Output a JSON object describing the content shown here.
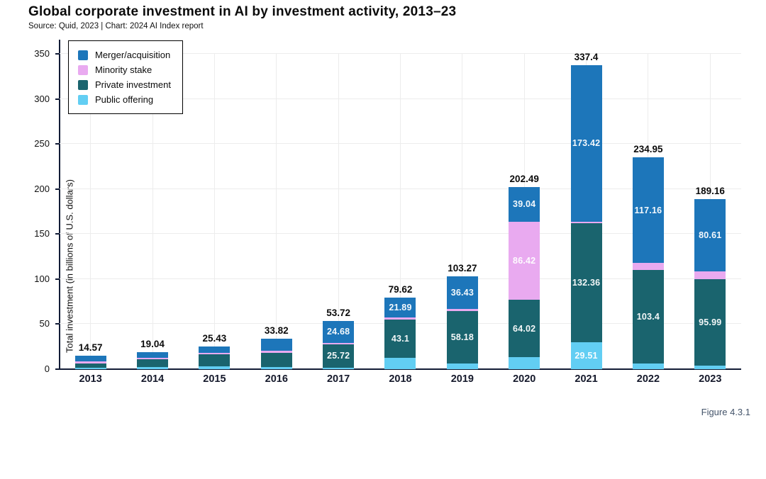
{
  "page": {
    "title": "Global corporate investment in AI by investment activity, 2013–23",
    "subtitle": "Source: Quid, 2023 | Chart: 2024 AI Index report",
    "figure_label": "Figure 4.3.1"
  },
  "chart_data": {
    "type": "bar",
    "variant": "stacked",
    "title": "Global corporate investment in AI by investment activity, 2013–23",
    "source": "Source: Quid, 2023 | Chart: 2024 AI Index report",
    "xlabel": "",
    "ylabel": "Total investment (in billions of U.S. dollars)",
    "ylim": [
      0,
      350
    ],
    "yticks": [
      0,
      50,
      100,
      150,
      200,
      250,
      300,
      350
    ],
    "grid": true,
    "legend_position": "top-left",
    "categories": [
      "2013",
      "2014",
      "2015",
      "2016",
      "2017",
      "2018",
      "2019",
      "2020",
      "2021",
      "2022",
      "2023"
    ],
    "totals": [
      14.57,
      19.04,
      25.43,
      33.82,
      53.72,
      79.62,
      103.27,
      202.49,
      337.4,
      234.95,
      189.16
    ],
    "total_labels": [
      "14.57",
      "19.04",
      "25.43",
      "33.82",
      "53.72",
      "79.62",
      "103.27",
      "202.49",
      "337.4",
      "234.95",
      "189.16"
    ],
    "stack_order_bottom_to_top": [
      "Public offering",
      "Private investment",
      "Minority stake",
      "Merger/acquisition"
    ],
    "note": "values without an on-chart label are estimated from bar pixel heights",
    "series": [
      {
        "name": "Merger/acquisition",
        "color": "#1d76ba",
        "values": [
          5.8,
          6.3,
          7.1,
          13.4,
          24.68,
          21.89,
          36.43,
          39.04,
          173.42,
          117.16,
          80.61
        ],
        "labels": [
          null,
          null,
          null,
          null,
          "24.68",
          "21.89",
          "36.43",
          "39.04",
          "173.42",
          "117.16",
          "80.61"
        ]
      },
      {
        "name": "Minority stake",
        "color": "#e9aaf0",
        "values": [
          2.2,
          1.6,
          1.6,
          2.0,
          1.6,
          2.4,
          2.3,
          86.42,
          2.11,
          8.0,
          8.6
        ],
        "labels": [
          null,
          null,
          null,
          null,
          null,
          null,
          null,
          "86.42",
          null,
          null,
          null
        ]
      },
      {
        "name": "Private investment",
        "color": "#1a646e",
        "values": [
          5.1,
          8.7,
          13.4,
          15.7,
          25.72,
          43.1,
          58.18,
          64.02,
          132.36,
          103.4,
          95.99
        ],
        "labels": [
          null,
          null,
          null,
          null,
          "25.72",
          "43.1",
          "58.18",
          "64.02",
          "132.36",
          "103.4",
          "95.99"
        ]
      },
      {
        "name": "Public offering",
        "color": "#62cef3",
        "values": [
          1.5,
          2.4,
          3.3,
          2.7,
          1.72,
          12.23,
          6.36,
          13.01,
          29.51,
          6.39,
          3.96
        ],
        "labels": [
          null,
          null,
          null,
          null,
          null,
          null,
          null,
          null,
          "29.51",
          null,
          null
        ]
      }
    ]
  }
}
